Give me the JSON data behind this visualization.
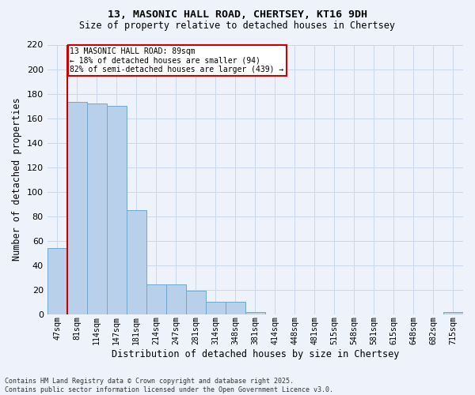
{
  "title": "13, MASONIC HALL ROAD, CHERTSEY, KT16 9DH",
  "subtitle": "Size of property relative to detached houses in Chertsey",
  "xlabel": "Distribution of detached houses by size in Chertsey",
  "ylabel": "Number of detached properties",
  "categories": [
    "47sqm",
    "81sqm",
    "114sqm",
    "147sqm",
    "181sqm",
    "214sqm",
    "247sqm",
    "281sqm",
    "314sqm",
    "348sqm",
    "381sqm",
    "414sqm",
    "448sqm",
    "481sqm",
    "515sqm",
    "548sqm",
    "581sqm",
    "615sqm",
    "648sqm",
    "682sqm",
    "715sqm"
  ],
  "values": [
    54,
    173,
    172,
    170,
    85,
    24,
    24,
    19,
    10,
    10,
    2,
    0,
    0,
    0,
    0,
    0,
    0,
    0,
    0,
    0,
    2
  ],
  "bar_color": "#b8d0ea",
  "bar_edge_color": "#6fa8d0",
  "vline_x_idx": 1,
  "annotation_text": "13 MASONIC HALL ROAD: 89sqm\n← 18% of detached houses are smaller (94)\n82% of semi-detached houses are larger (439) →",
  "annotation_box_color": "#ffffff",
  "annotation_box_edge": "#cc0000",
  "vline_color": "#cc0000",
  "grid_color": "#c8d8ec",
  "background_color": "#eef2fb",
  "ylim": [
    0,
    220
  ],
  "yticks": [
    0,
    20,
    40,
    60,
    80,
    100,
    120,
    140,
    160,
    180,
    200,
    220
  ],
  "footnote": "Contains HM Land Registry data © Crown copyright and database right 2025.\nContains public sector information licensed under the Open Government Licence v3.0."
}
